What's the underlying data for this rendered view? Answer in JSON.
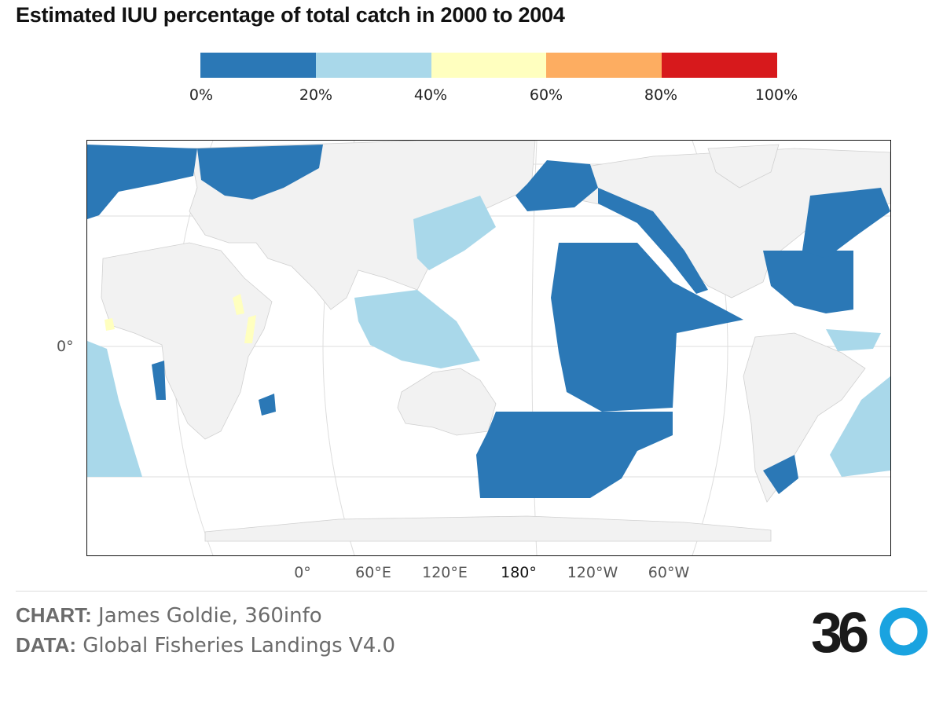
{
  "title": "Estimated IUU percentage of total catch in 2000 to 2004",
  "legend": {
    "colors": [
      "#2b78b6",
      "#a9d8ea",
      "#ffffbf",
      "#fdad61",
      "#d7191c"
    ],
    "labels": [
      "0%",
      "20%",
      "40%",
      "60%",
      "80%",
      "100%"
    ]
  },
  "axes": {
    "lat_label": "0°",
    "lon_labels": [
      "0°",
      "60°E",
      "120°E",
      "180°",
      "120°W",
      "60°W"
    ]
  },
  "colors": {
    "land": "#f2f2f2",
    "land_border": "#d0d0d0",
    "ocean": "#ffffff",
    "graticule": "#dddddd"
  },
  "footer": {
    "chart_prefix": "CHART:",
    "chart_text": " James Goldie, 360info",
    "data_prefix": "DATA:",
    "data_text": " Global Fisheries Landings V4.0",
    "logo_text": "360"
  }
}
